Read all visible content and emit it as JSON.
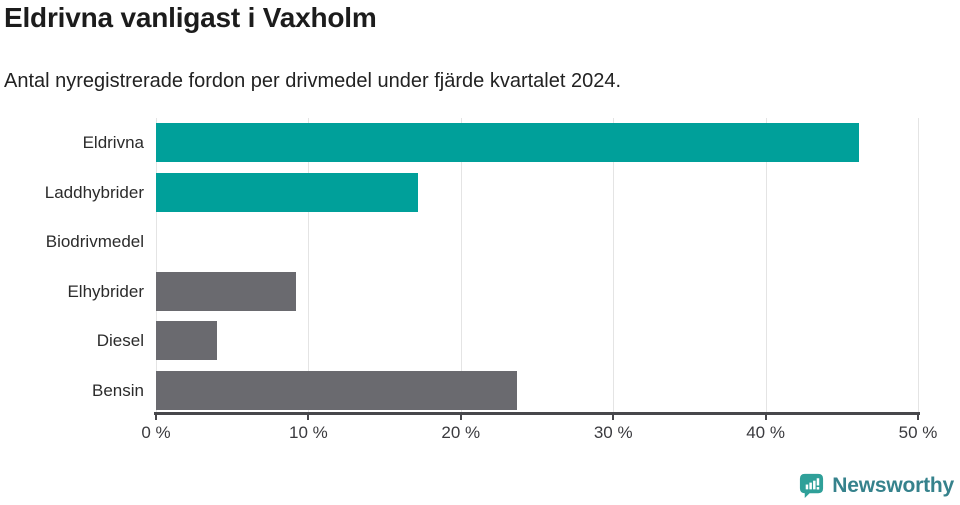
{
  "header": {
    "title": "Eldrivna vanligast i Vaxholm",
    "subtitle": "Antal nyregistrerade fordon per drivmedel under fjärde kvartalet 2024."
  },
  "chart_data": {
    "type": "bar",
    "orientation": "horizontal",
    "title": "Eldrivna vanligast i Vaxholm",
    "subtitle": "Antal nyregistrerade fordon per drivmedel under fjärde kvartalet 2024.",
    "categories": [
      "Eldrivna",
      "Laddhybrider",
      "Biodrivmedel",
      "Elhybrider",
      "Diesel",
      "Bensin"
    ],
    "values": [
      46.1,
      17.2,
      0,
      9.2,
      4,
      23.7
    ],
    "unit": "%",
    "bar_colors": [
      "#00a09a",
      "#00a09a",
      "#6a6a6f",
      "#6a6a6f",
      "#6a6a6f",
      "#6a6a6f"
    ],
    "highlight_color": "#00a09a",
    "default_color": "#6a6a6f",
    "xlabel": "",
    "ylabel": "",
    "xlim": [
      0,
      50
    ],
    "x_ticks": [
      0,
      10,
      20,
      30,
      40,
      50
    ],
    "x_tick_labels": [
      "0 %",
      "10 %",
      "20 %",
      "30 %",
      "40 %",
      "50 %"
    ],
    "grid": "vertical-only",
    "legend": "none"
  },
  "footer": {
    "brand": "Newsworthy",
    "brand_text_color": "#36828c",
    "logo_color": "#2fa099"
  }
}
